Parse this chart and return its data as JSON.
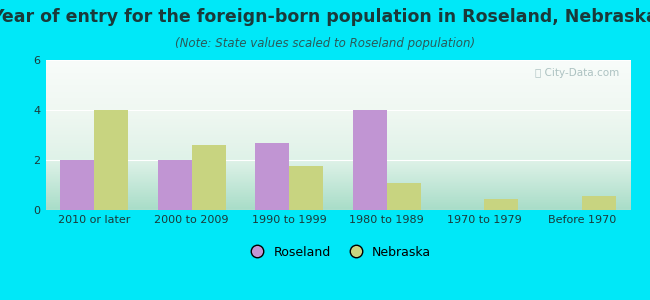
{
  "title": "Year of entry for the foreign-born population in Roseland, Nebraska",
  "subtitle": "(Note: State values scaled to Roseland population)",
  "categories": [
    "2010 or later",
    "2000 to 2009",
    "1990 to 1999",
    "1980 to 1989",
    "1970 to 1979",
    "Before 1970"
  ],
  "roseland_values": [
    2.0,
    2.0,
    2.7,
    4.0,
    0.0,
    0.0
  ],
  "nebraska_values": [
    4.0,
    2.6,
    1.75,
    1.1,
    0.45,
    0.55
  ],
  "roseland_color": "#c195d3",
  "nebraska_color": "#c8d480",
  "background_color": "#00e8f8",
  "plot_bg_colors": [
    "#b2e8d8",
    "#e0f2e8",
    "#eaf5ee",
    "#f5faf5"
  ],
  "title_color": "#1a3a3a",
  "subtitle_color": "#2a5a5a",
  "tick_color": "#1a3a3a",
  "ylim": [
    0,
    6
  ],
  "yticks": [
    0,
    2,
    4,
    6
  ],
  "bar_width": 0.35,
  "title_fontsize": 12.5,
  "subtitle_fontsize": 8.5,
  "tick_fontsize": 8,
  "legend_fontsize": 9,
  "watermark": "City-Data.com",
  "watermark_color": "#a0b8b8",
  "grid_color": "#ffffff"
}
